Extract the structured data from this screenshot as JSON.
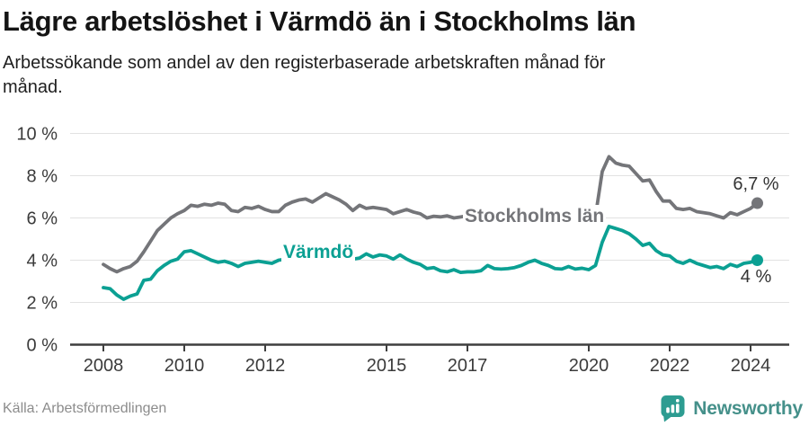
{
  "chart_data": {
    "type": "line",
    "title": "Lägre arbetslöshet i Värmdö än i Stockholms län",
    "subtitle": "Arbetssökande som andel av den registerbaserade arbetskraften månad för månad.",
    "source": "Källa: Arbetsförmedlingen",
    "x_unit": "year",
    "x_start": 2008.0,
    "x_step_years": 0.1666667,
    "x_end": 2024.1667,
    "x_axis_tick_years": [
      2008,
      2010,
      2012,
      2015,
      2017,
      2020,
      2022,
      2024
    ],
    "y_ticks_percent": [
      0,
      2,
      4,
      6,
      8,
      10
    ],
    "y_tick_suffix": " %",
    "ylim": [
      0,
      10
    ],
    "grid": true,
    "legend_position": "inline-labels-on-lines",
    "series": [
      {
        "name": "Stockholms län",
        "color": "#747579",
        "end_label": "6,7 %",
        "end_value": 6.7,
        "values": [
          3.8,
          3.6,
          3.45,
          3.6,
          3.7,
          3.95,
          4.4,
          4.9,
          5.4,
          5.7,
          6.0,
          6.2,
          6.35,
          6.6,
          6.55,
          6.65,
          6.6,
          6.7,
          6.65,
          6.35,
          6.3,
          6.5,
          6.45,
          6.55,
          6.4,
          6.3,
          6.3,
          6.6,
          6.75,
          6.85,
          6.9,
          6.75,
          6.95,
          7.15,
          7.0,
          6.85,
          6.65,
          6.35,
          6.6,
          6.45,
          6.5,
          6.45,
          6.4,
          6.2,
          6.3,
          6.4,
          6.28,
          6.2,
          6.0,
          6.08,
          6.05,
          6.1,
          6.0,
          6.05,
          6.1,
          6.0,
          5.95,
          5.9,
          5.9,
          5.85,
          5.8,
          5.75,
          5.7,
          5.7,
          5.65,
          5.65,
          5.6,
          5.6,
          5.65,
          5.7,
          5.75,
          5.8,
          5.9,
          6.1,
          8.2,
          8.9,
          8.6,
          8.5,
          8.45,
          8.1,
          7.75,
          7.8,
          7.25,
          6.8,
          6.8,
          6.45,
          6.4,
          6.45,
          6.3,
          6.25,
          6.2,
          6.1,
          6.0,
          6.25,
          6.15,
          6.3,
          6.45,
          6.7
        ]
      },
      {
        "name": "Värmdö",
        "color": "#0BA093",
        "end_label": "4 %",
        "end_value": 4.0,
        "values": [
          2.7,
          2.65,
          2.35,
          2.15,
          2.3,
          2.4,
          3.05,
          3.1,
          3.5,
          3.75,
          3.95,
          4.05,
          4.4,
          4.45,
          4.3,
          4.15,
          4.0,
          3.9,
          3.95,
          3.85,
          3.7,
          3.85,
          3.9,
          3.95,
          3.9,
          3.85,
          4.0,
          4.05,
          4.1,
          4.05,
          4.1,
          4.15,
          4.1,
          4.05,
          4.1,
          4.15,
          4.1,
          4.05,
          4.1,
          4.3,
          4.15,
          4.25,
          4.2,
          4.05,
          4.25,
          4.05,
          3.9,
          3.8,
          3.6,
          3.65,
          3.5,
          3.45,
          3.55,
          3.42,
          3.45,
          3.45,
          3.5,
          3.75,
          3.6,
          3.58,
          3.6,
          3.65,
          3.75,
          3.9,
          4.0,
          3.85,
          3.75,
          3.6,
          3.58,
          3.7,
          3.58,
          3.62,
          3.55,
          3.75,
          4.85,
          5.6,
          5.5,
          5.4,
          5.25,
          5.0,
          4.7,
          4.8,
          4.45,
          4.25,
          4.2,
          3.95,
          3.85,
          4.0,
          3.85,
          3.75,
          3.65,
          3.7,
          3.6,
          3.8,
          3.7,
          3.85,
          3.9,
          4.0
        ]
      }
    ]
  },
  "branding": {
    "wordmark": "Newsworthy",
    "icon_color": "#2D9C91",
    "text_color": "#45908A"
  }
}
